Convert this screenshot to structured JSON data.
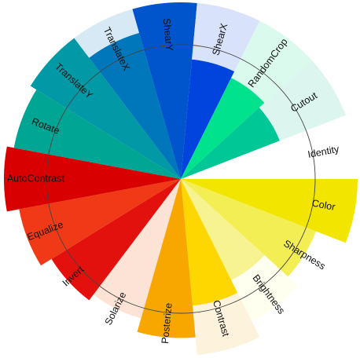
{
  "chart_data": {
    "type": "radial-bar",
    "title": "",
    "value_max": 100,
    "reference_ring_value": 76,
    "grid": false,
    "legend": "none",
    "categories": [
      {
        "label": "Color",
        "outer": 100,
        "inner": 90,
        "color": "#f2e600",
        "fade_color": "#fffbd9"
      },
      {
        "label": "Sharpness",
        "outer": 82,
        "inner": 70,
        "color": "#f4ee55",
        "fade_color": "#fefde8"
      },
      {
        "label": "Brightness",
        "outer": 64,
        "inner": 90,
        "color": "#f7f390",
        "fade_color": "#fffff0"
      },
      {
        "label": "Contrast",
        "outer": 72,
        "inner": 100,
        "color": "#ffd700",
        "fade_color": "#fdf3dd"
      },
      {
        "label": "Posterize",
        "outer": 90,
        "inner": 0,
        "color": "#f7a700",
        "fade_color": "#fdf0e2"
      },
      {
        "label": "Solarize",
        "outer": 0,
        "inner": 82,
        "color": "#f46f0e",
        "fade_color": "#fde3d5"
      },
      {
        "label": "Invert",
        "outer": 86,
        "inner": 0,
        "color": "#e3110d",
        "fade_color": "#fbd8d1"
      },
      {
        "label": "Equalize",
        "outer": 93,
        "inner": 0,
        "color": "#f03a17",
        "fade_color": "#fbd3c6"
      },
      {
        "label": "AutoContrast",
        "outer": 100,
        "inner": 0,
        "color": "#d80000",
        "fade_color": "#f6d4cf"
      },
      {
        "label": "Rotate",
        "outer": 96,
        "inner": 0,
        "color": "#00a593",
        "fade_color": "#d8f3ee"
      },
      {
        "label": "TranslateY",
        "outer": 100,
        "inner": 0,
        "color": "#0099a5",
        "fade_color": "#d5eef5"
      },
      {
        "label": "TranslateX",
        "outer": 86,
        "inner": 100,
        "color": "#0077bb",
        "fade_color": "#d6e9f5"
      },
      {
        "label": "ShearY",
        "outer": 100,
        "inner": 0,
        "color": "#0055cc",
        "fade_color": "#d5e3f8"
      },
      {
        "label": "ShearX",
        "outer": 68,
        "inner": 100,
        "color": "#0044dd",
        "fade_color": "#d8e2fa"
      },
      {
        "label": "RandomCrop",
        "outer": 64,
        "inner": 100,
        "color": "#00e38c",
        "fade_color": "#dbfaee"
      },
      {
        "label": "Cutout",
        "outer": 60,
        "inner": 100,
        "color": "#00c796",
        "fade_color": "#dcf6ef"
      },
      {
        "label": "Identity",
        "outer": 0,
        "inner": 0,
        "color": "#ffffff",
        "fade_color": "#ffffff"
      }
    ]
  }
}
